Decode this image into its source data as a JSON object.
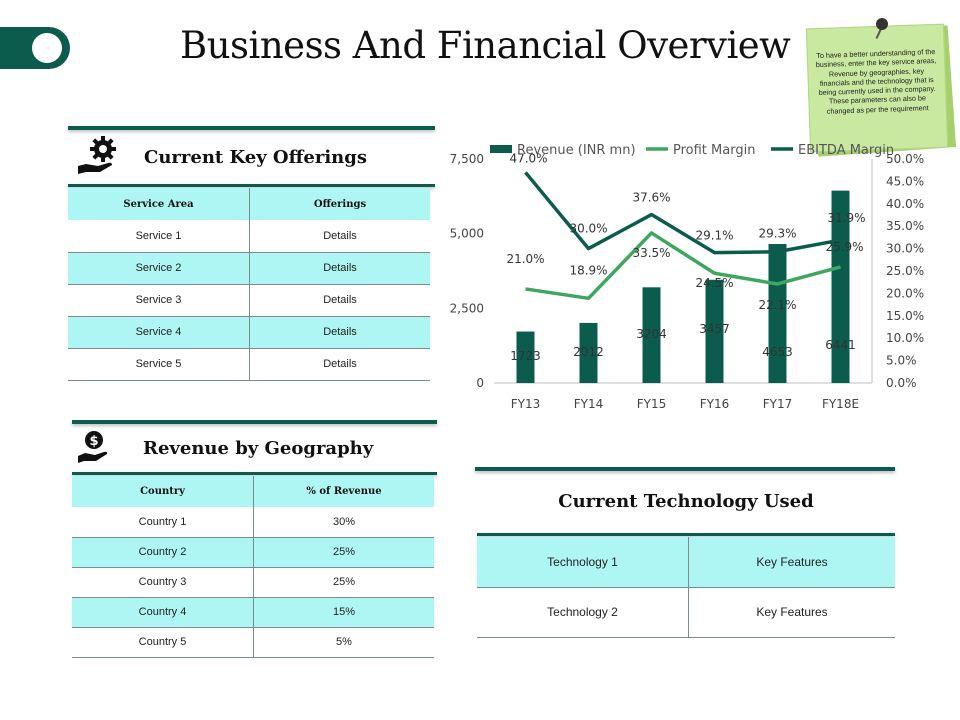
{
  "page": {
    "title": "Business And Financial Overview",
    "note": "To have a better understanding of the business, enter the key service areas, Revenue by geographies, key financials and the technology that is being currently used in the company. These parameters can also be changed  as per the requirement",
    "accent_color": "#0b5c4d",
    "table_highlight_color": "#aef6f3"
  },
  "offerings": {
    "title": "Current Key Offerings",
    "headers": [
      "Service Area",
      "Offerings"
    ],
    "rows": [
      [
        "Service 1",
        "Details"
      ],
      [
        "Service 2",
        "Details"
      ],
      [
        "Service 3",
        "Details"
      ],
      [
        "Service 4",
        "Details"
      ],
      [
        "Service 5",
        "Details"
      ]
    ]
  },
  "geography": {
    "title": "Revenue by Geography",
    "headers": [
      "Country",
      "% of Revenue"
    ],
    "rows": [
      [
        "Country 1",
        "30%"
      ],
      [
        "Country 2",
        "25%"
      ],
      [
        "Country 3",
        "25%"
      ],
      [
        "Country 4",
        "15%"
      ],
      [
        "Country 5",
        "5%"
      ]
    ]
  },
  "technology": {
    "title": "Current Technology Used",
    "rows": [
      [
        "Technology 1",
        "Key Features"
      ],
      [
        "Technology 2",
        "Key Features"
      ]
    ]
  },
  "chart_data": {
    "type": "bar",
    "categories": [
      "FY13",
      "FY14",
      "FY15",
      "FY16",
      "FY17",
      "FY18E"
    ],
    "series": [
      {
        "name": "Revenue (INR mn)",
        "type": "bar",
        "axis": "left",
        "color": "#0b5c4d",
        "values": [
          1723,
          2012,
          3204,
          3457,
          4653,
          6441
        ],
        "labels": [
          "1723",
          "2012",
          "3204",
          "3457",
          "4653",
          "6441"
        ]
      },
      {
        "name": "Profit Margin",
        "type": "line",
        "axis": "right",
        "color": "#3fa660",
        "values": [
          21.0,
          18.9,
          33.5,
          24.5,
          22.1,
          25.9
        ],
        "labels": [
          "21.0%",
          "18.9%",
          "33.5%",
          "24.5%",
          "22.1%",
          "25.9%"
        ]
      },
      {
        "name": "EBITDA Margin",
        "type": "line",
        "axis": "right",
        "color": "#0b5c4d",
        "values": [
          47.0,
          30.0,
          37.6,
          29.1,
          29.3,
          31.9
        ],
        "labels": [
          "47.0%",
          "30.0%",
          "37.6%",
          "29.1%",
          "29.3%",
          "31.9%"
        ]
      }
    ],
    "y_left": {
      "ticks": [
        "0",
        "2,500",
        "5,000",
        "7,500"
      ],
      "tick_values": [
        0,
        2500,
        5000,
        7500
      ],
      "range": [
        0,
        7500
      ]
    },
    "y_right": {
      "ticks": [
        "0.0%",
        "5.0%",
        "10.0%",
        "15.0%",
        "20.0%",
        "25.0%",
        "30.0%",
        "35.0%",
        "40.0%",
        "45.0%",
        "50.0%"
      ],
      "tick_values": [
        0,
        5,
        10,
        15,
        20,
        25,
        30,
        35,
        40,
        45,
        50
      ],
      "range": [
        0,
        50
      ]
    },
    "grid": false,
    "legend_position": "top"
  }
}
